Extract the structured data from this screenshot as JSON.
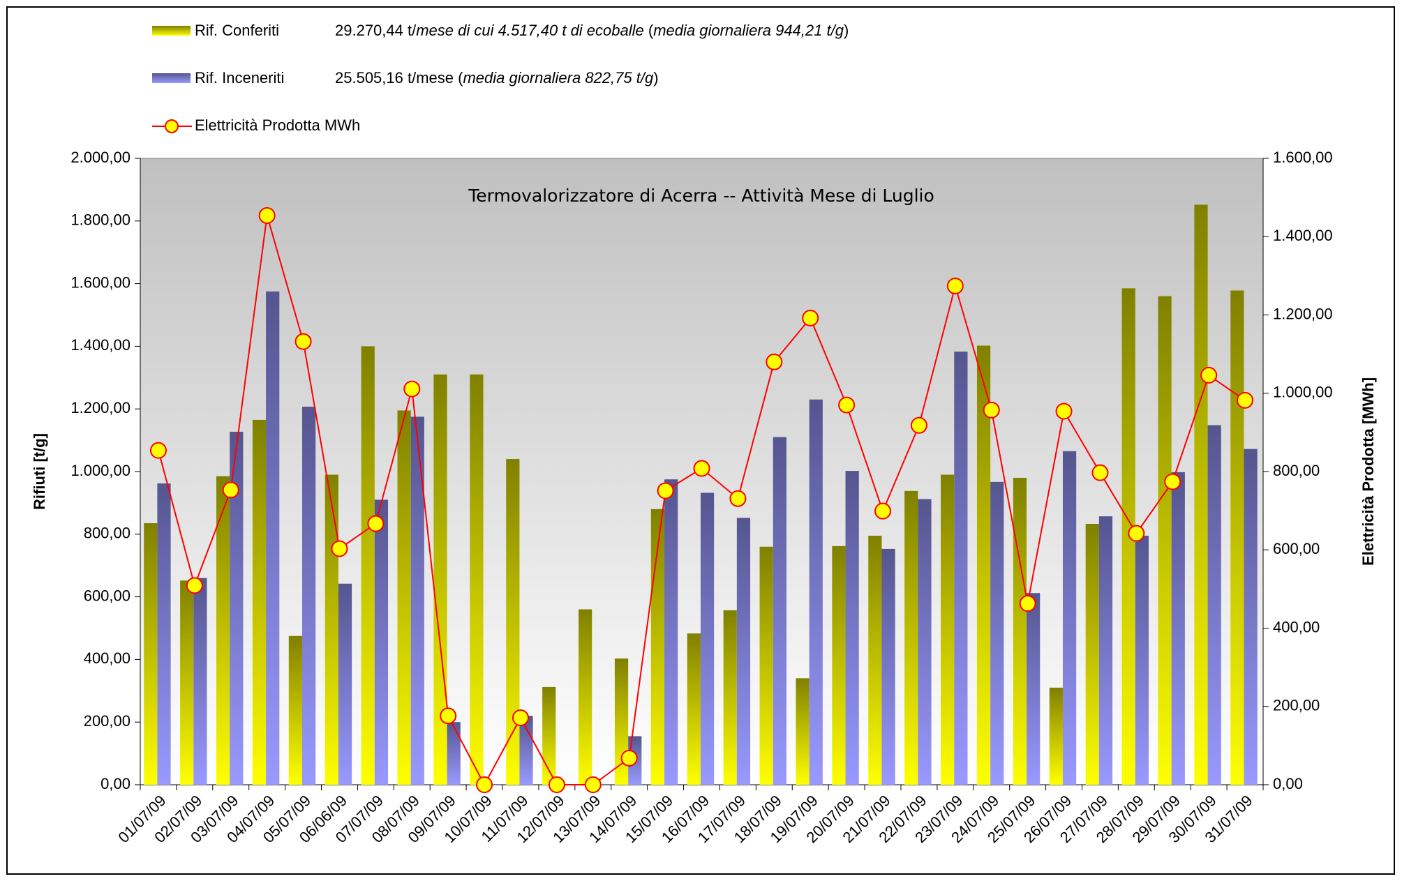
{
  "chart_data": {
    "type": "bar",
    "title": "Termovalorizzatore di Acerra -- Attività Mese di Luglio",
    "y_label": "Rifiuti [t/g]",
    "y2_label": "Elettricità Prodotta [MWh]",
    "categories": [
      "01/07/09",
      "02/07/09",
      "03/07/09",
      "04/07/09",
      "05/07/09",
      "06/06/09",
      "07/07/09",
      "08/07/09",
      "09/07/09",
      "10/07/09",
      "11/07/09",
      "12/07/09",
      "13/07/09",
      "14/07/09",
      "15/07/09",
      "16/07/09",
      "17/07/09",
      "18/07/09",
      "19/07/09",
      "20/07/09",
      "21/07/09",
      "22/07/09",
      "23/07/09",
      "24/07/09",
      "25/07/09",
      "26/07/09",
      "27/07/09",
      "28/07/09",
      "29/07/09",
      "30/07/09",
      "31/07/09"
    ],
    "series": [
      {
        "name": "Rif. Conferiti",
        "type": "bar",
        "color": "#808000",
        "note": [
          "29.270,44 t/",
          "mese di cui 4.517,40 t di ecoballe",
          " (",
          "media giornaliera 944,21 t/g",
          ")"
        ],
        "values": [
          835,
          652,
          985,
          1165,
          475,
          990,
          1400,
          1195,
          1310,
          1310,
          1040,
          312,
          560,
          403,
          880,
          483,
          557,
          760,
          340,
          762,
          795,
          938,
          990,
          1402,
          980,
          310,
          833,
          1585,
          1560,
          1852,
          1578
        ]
      },
      {
        "name": "Rif. Inceneriti",
        "type": "bar",
        "color": "#55558f",
        "note": [
          "25.505,16 t/mese (",
          "media giornaliera 822,75 t/g",
          ")"
        ],
        "values": [
          962,
          660,
          1127,
          1575,
          1207,
          642,
          910,
          1175,
          200,
          0,
          220,
          0,
          0,
          155,
          975,
          932,
          852,
          1110,
          1230,
          1002,
          753,
          912,
          1383,
          967,
          612,
          1065,
          857,
          795,
          998,
          1148,
          1072
        ]
      },
      {
        "name": "Elettricità Prodotta MWh",
        "type": "line",
        "axis": "y2",
        "color": "#ff0000",
        "values": [
          854,
          509,
          753,
          1454,
          1132,
          603,
          667,
          1011,
          176,
          0,
          171,
          0,
          0,
          68,
          751,
          808,
          731,
          1080,
          1192,
          970,
          699,
          918,
          1274,
          957,
          463,
          954,
          797,
          642,
          774,
          1046,
          982
        ]
      }
    ],
    "ylim": [
      0,
      2000
    ],
    "yticks": [
      {
        "value": 0,
        "label": "0,00"
      },
      {
        "value": 200,
        "label": "200,00"
      },
      {
        "value": 400,
        "label": "400,00"
      },
      {
        "value": 600,
        "label": "600,00"
      },
      {
        "value": 800,
        "label": "800,00"
      },
      {
        "value": 1000,
        "label": "1.000,00"
      },
      {
        "value": 1200,
        "label": "1.200,00"
      },
      {
        "value": 1400,
        "label": "1.400,00"
      },
      {
        "value": 1600,
        "label": "1.600,00"
      },
      {
        "value": 1800,
        "label": "1.800,00"
      },
      {
        "value": 2000,
        "label": "2.000,00"
      }
    ],
    "y2lim": [
      0,
      1600
    ],
    "y2ticks": [
      {
        "value": 0,
        "label": "0,00"
      },
      {
        "value": 200,
        "label": "200,00"
      },
      {
        "value": 400,
        "label": "400,00"
      },
      {
        "value": 600,
        "label": "600,00"
      },
      {
        "value": 800,
        "label": "800,00"
      },
      {
        "value": 1000,
        "label": "1.000,00"
      },
      {
        "value": 1200,
        "label": "1.200,00"
      },
      {
        "value": 1400,
        "label": "1.400,00"
      },
      {
        "value": 1600,
        "label": "1.600,00"
      }
    ]
  }
}
